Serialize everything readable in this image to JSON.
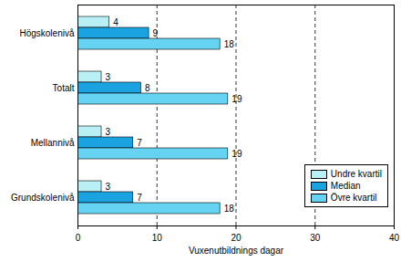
{
  "chart_data": {
    "type": "bar",
    "orientation": "horizontal",
    "categories": [
      "Högskolenivå",
      "Totalt",
      "Mellannivå",
      "Grundskolenivå"
    ],
    "series": [
      {
        "name": "Undre kvartil",
        "color": "#b8f0f5",
        "values": [
          4,
          3,
          3,
          3
        ]
      },
      {
        "name": "Median",
        "color": "#1aa3e0",
        "values": [
          9,
          8,
          7,
          7
        ]
      },
      {
        "name": "Övre kvartil",
        "color": "#66d3f2",
        "values": [
          18,
          19,
          19,
          18
        ]
      }
    ],
    "x_label": "Vuxenutbildnings dagar",
    "xlim": [
      0,
      40
    ],
    "xticks": [
      0,
      10,
      20,
      30,
      40
    ],
    "grid": true,
    "data_labels": true,
    "legend": "lower right"
  }
}
